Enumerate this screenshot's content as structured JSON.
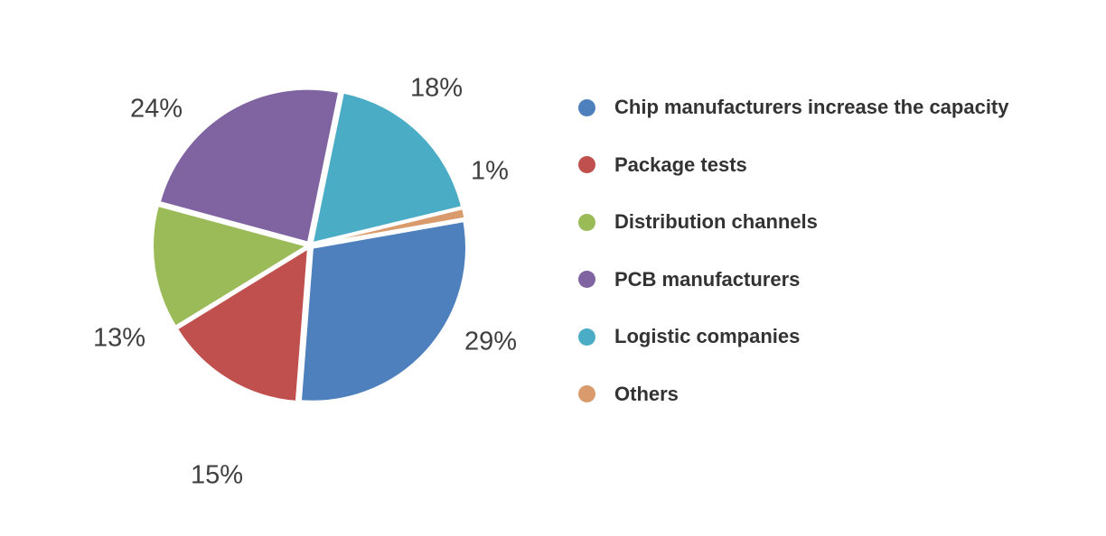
{
  "chart_data": {
    "type": "pie",
    "series": [
      {
        "name": "Chip manufacturers increase the capacity",
        "value": 29,
        "label": "29%",
        "color": "#4E80BD"
      },
      {
        "name": "Package tests",
        "value": 15,
        "label": "15%",
        "color": "#C0504D"
      },
      {
        "name": "Distribution channels",
        "value": 13,
        "label": "13%",
        "color": "#9BBB59"
      },
      {
        "name": "PCB manufacturers",
        "value": 24,
        "label": "24%",
        "color": "#8064A2"
      },
      {
        "name": "Logistic companies",
        "value": 18,
        "label": "18%",
        "color": "#4BACC6"
      },
      {
        "name": "Others",
        "value": 1,
        "label": "1%",
        "color": "#D99B6C"
      }
    ],
    "legend_position": "right"
  }
}
